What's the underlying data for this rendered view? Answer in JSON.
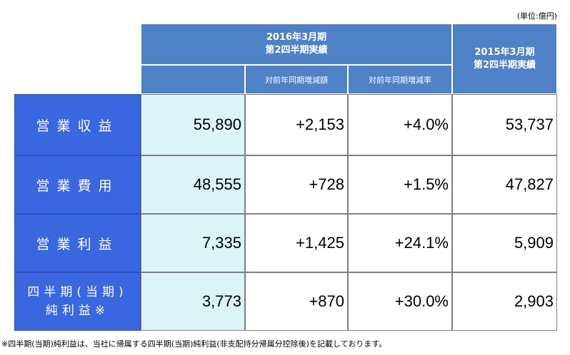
{
  "unit_label": "(単位:億円)",
  "header": {
    "current": "2016年3月期\n第2四半期実績",
    "diff_amount": "対前年同期増減額",
    "diff_rate": "対前年同期増減率",
    "previous": "2015年3月期\n第2四半期実績"
  },
  "rows": [
    {
      "label": "営業収益",
      "current": "55,890",
      "diff": "+2,153",
      "rate": "+4.0%",
      "previous": "53,737"
    },
    {
      "label": "営業費用",
      "current": "48,555",
      "diff": "+728",
      "rate": "+1.5%",
      "previous": "47,827"
    },
    {
      "label": "営業利益",
      "current": "7,335",
      "diff": "+1,425",
      "rate": "+24.1%",
      "previous": "5,909"
    },
    {
      "label_line1": "四半期(当期)",
      "label_line2": "純利益※",
      "current": "3,773",
      "diff": "+870",
      "rate": "+30.0%",
      "previous": "2,903"
    }
  ],
  "footnote": "※四半期(当期)純利益は、当社に帰属する四半期(当期)純利益(非支配持分帰属分控除後)を記載しております。",
  "colors": {
    "header_bg": "#4f81c7",
    "row_label_bg": "#3a66df",
    "current_bg": "#dcf3f8"
  }
}
